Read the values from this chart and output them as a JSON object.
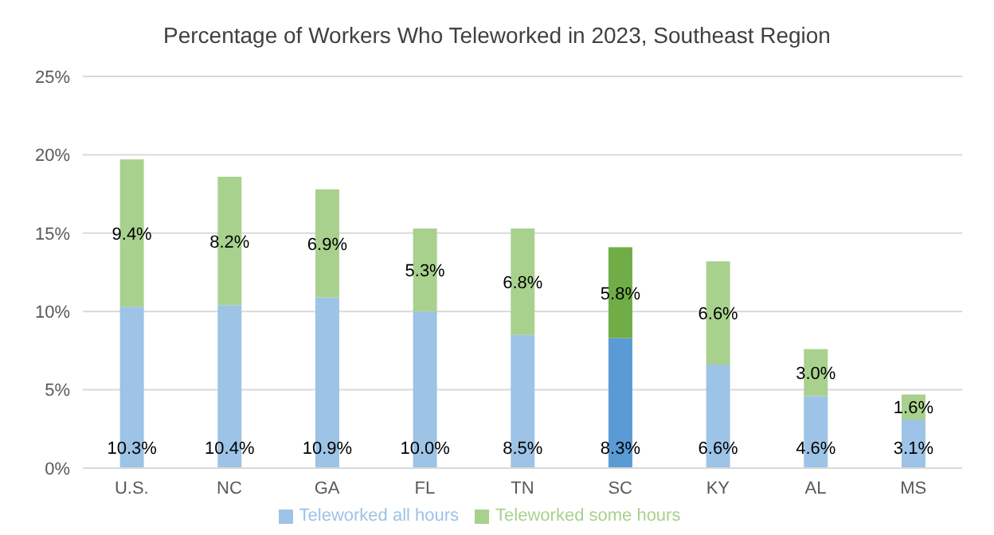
{
  "chart_data": {
    "type": "bar",
    "title": "Percentage of Workers Who Teleworked in 2023, Southeast Region",
    "categories": [
      "U.S.",
      "NC",
      "GA",
      "FL",
      "TN",
      "SC",
      "KY",
      "AL",
      "MS"
    ],
    "stacked": true,
    "series": [
      {
        "name": "Teleworked all hours",
        "color": "#9dc3e6",
        "colors": [
          "#9dc3e6",
          "#9dc3e6",
          "#9dc3e6",
          "#9dc3e6",
          "#9dc3e6",
          "#5b9bd5",
          "#9dc3e6",
          "#9dc3e6",
          "#9dc3e6"
        ],
        "values": [
          10.3,
          10.4,
          10.9,
          10.0,
          8.5,
          8.3,
          6.6,
          4.6,
          3.1
        ],
        "value_labels": [
          "10.3%",
          "10.4%",
          "10.9%",
          "10.0%",
          "8.5%",
          "8.3%",
          "6.6%",
          "4.6%",
          "3.1%"
        ]
      },
      {
        "name": "Teleworked some hours",
        "color": "#a9d18e",
        "colors": [
          "#a9d18e",
          "#a9d18e",
          "#a9d18e",
          "#a9d18e",
          "#a9d18e",
          "#70ad47",
          "#a9d18e",
          "#a9d18e",
          "#a9d18e"
        ],
        "values": [
          9.4,
          8.2,
          6.9,
          5.3,
          6.8,
          5.8,
          6.6,
          3.0,
          1.6
        ],
        "value_labels": [
          "9.4%",
          "8.2%",
          "6.9%",
          "5.3%",
          "6.8%",
          "5.8%",
          "6.6%",
          "3.0%",
          "1.6%"
        ]
      }
    ],
    "ylim": [
      0,
      25
    ],
    "yticks": [
      {
        "value": 0,
        "label": "0%"
      },
      {
        "value": 5,
        "label": "5%"
      },
      {
        "value": 10,
        "label": "10%"
      },
      {
        "value": 15,
        "label": "15%"
      },
      {
        "value": 20,
        "label": "20%"
      },
      {
        "value": 25,
        "label": "25%"
      }
    ],
    "grid": "y",
    "legend": "bottom"
  }
}
